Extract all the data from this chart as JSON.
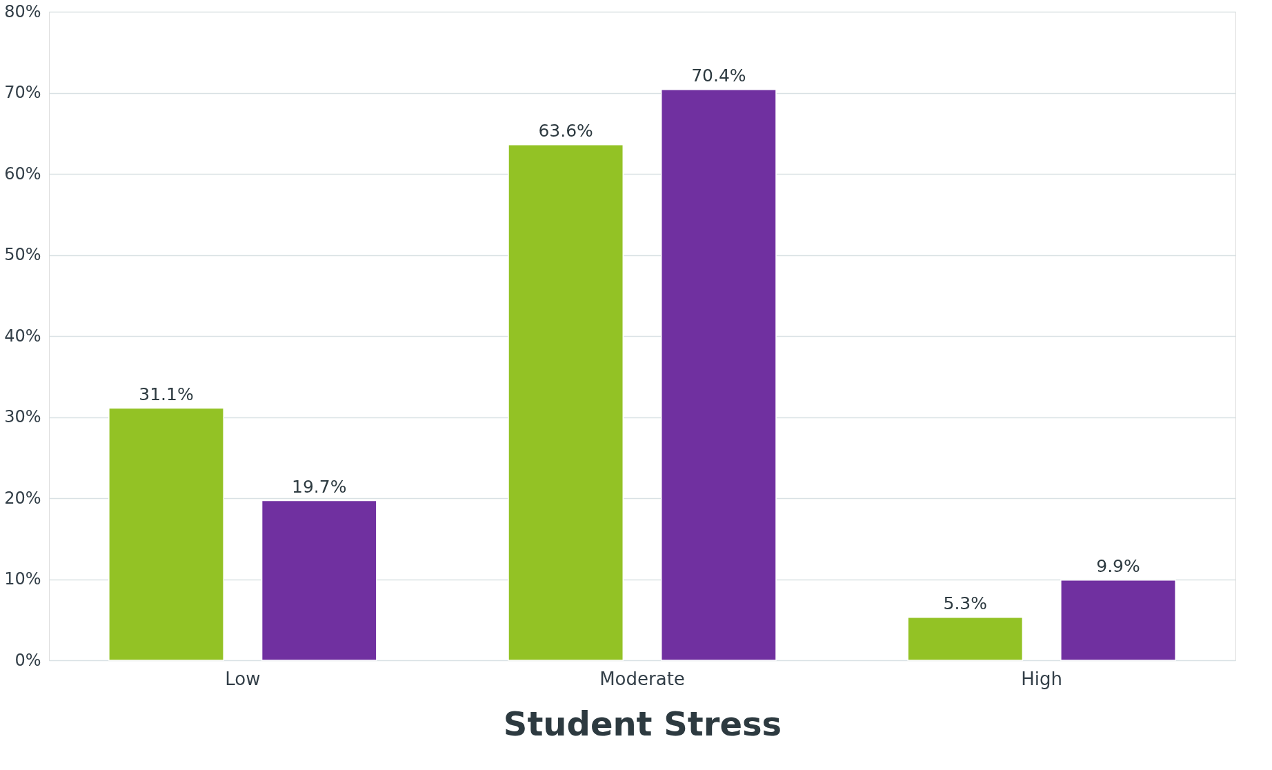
{
  "chart_data": {
    "type": "bar",
    "xlabel": "Student Stress",
    "categories": [
      "Low",
      "Moderate",
      "High"
    ],
    "series": [
      {
        "color": "#93c225",
        "values": [
          31.1,
          63.6,
          5.3
        ],
        "value_labels": [
          "31.1%",
          "63.6%",
          "5.3%"
        ]
      },
      {
        "color": "#7030a0",
        "values": [
          19.7,
          70.4,
          9.9
        ],
        "value_labels": [
          "19.7%",
          "70.4%",
          "9.9%"
        ]
      }
    ],
    "ylim": [
      0,
      80
    ],
    "yticks": [
      {
        "value": 0,
        "label": "0%"
      },
      {
        "value": 10,
        "label": "10%"
      },
      {
        "value": 20,
        "label": "20%"
      },
      {
        "value": 30,
        "label": "30%"
      },
      {
        "value": 40,
        "label": "40%"
      },
      {
        "value": 50,
        "label": "50%"
      },
      {
        "value": 60,
        "label": "60%"
      },
      {
        "value": 70,
        "label": "70%"
      },
      {
        "value": 80,
        "label": "80%"
      }
    ],
    "grid": "y",
    "legend": false
  }
}
